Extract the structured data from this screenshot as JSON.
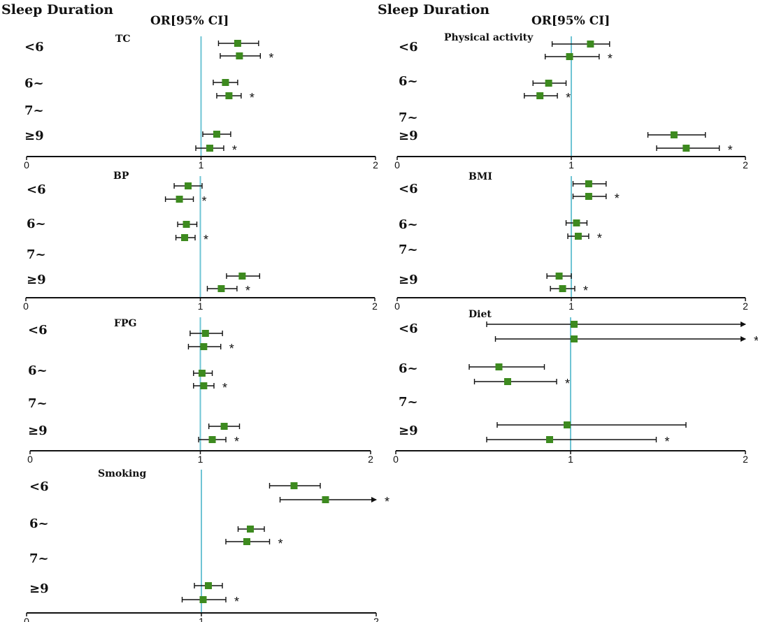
{
  "headers": {
    "left": "Sleep Duration",
    "right": "Sleep Duration",
    "or_left": "OR[95% CI]",
    "or_right": "OR[95% CI]"
  },
  "colors": {
    "marker": "#3d8a1f",
    "reference_line": "#6fc4d4",
    "axis": "#111111"
  },
  "chart_data": [
    {
      "type": "forest",
      "title": "TC",
      "categories": [
        "<6",
        "6~",
        "7~",
        "≥9"
      ],
      "xlim": [
        0,
        2
      ],
      "xticks": [
        "0",
        "1",
        "2"
      ],
      "reference": 1,
      "rows": [
        {
          "category": "<6",
          "or": 1.21,
          "lo": 1.1,
          "hi": 1.33,
          "star": false
        },
        {
          "category": "<6",
          "or": 1.22,
          "lo": 1.11,
          "hi": 1.34,
          "star": true
        },
        {
          "category": "6~",
          "or": 1.14,
          "lo": 1.07,
          "hi": 1.21,
          "star": false
        },
        {
          "category": "6~",
          "or": 1.16,
          "lo": 1.09,
          "hi": 1.23,
          "star": true
        },
        {
          "category": "≥9",
          "or": 1.09,
          "lo": 1.01,
          "hi": 1.17,
          "star": false
        },
        {
          "category": "≥9",
          "or": 1.05,
          "lo": 0.97,
          "hi": 1.13,
          "star": true
        }
      ]
    },
    {
      "type": "forest",
      "title": "Physical activity",
      "categories": [
        "<6",
        "6~",
        "7~",
        "≥9"
      ],
      "xlim": [
        0,
        2
      ],
      "xticks": [
        "0",
        "1",
        "2"
      ],
      "reference": 1,
      "rows": [
        {
          "category": "<6",
          "or": 1.11,
          "lo": 0.89,
          "hi": 1.22,
          "star": false
        },
        {
          "category": "<6",
          "or": 0.99,
          "lo": 0.85,
          "hi": 1.16,
          "star": true
        },
        {
          "category": "6~",
          "or": 0.87,
          "lo": 0.78,
          "hi": 0.97,
          "star": false
        },
        {
          "category": "6~",
          "or": 0.82,
          "lo": 0.73,
          "hi": 0.92,
          "star": true
        },
        {
          "category": "≥9",
          "or": 1.59,
          "lo": 1.44,
          "hi": 1.77,
          "star": false
        },
        {
          "category": "≥9",
          "or": 1.66,
          "lo": 1.49,
          "hi": 1.85,
          "star": true
        }
      ]
    },
    {
      "type": "forest",
      "title": "BP",
      "categories": [
        "<6",
        "6~",
        "7~",
        "≥9"
      ],
      "xlim": [
        0,
        2
      ],
      "xticks": [
        "0",
        "1",
        "2"
      ],
      "reference": 1,
      "rows": [
        {
          "category": "<6",
          "or": 0.93,
          "lo": 0.85,
          "hi": 1.01,
          "star": false
        },
        {
          "category": "<6",
          "or": 0.88,
          "lo": 0.8,
          "hi": 0.96,
          "star": true
        },
        {
          "category": "6~",
          "or": 0.92,
          "lo": 0.87,
          "hi": 0.98,
          "star": false
        },
        {
          "category": "6~",
          "or": 0.91,
          "lo": 0.86,
          "hi": 0.97,
          "star": true
        },
        {
          "category": "≥9",
          "or": 1.24,
          "lo": 1.15,
          "hi": 1.34,
          "star": false
        },
        {
          "category": "≥9",
          "or": 1.12,
          "lo": 1.04,
          "hi": 1.21,
          "star": true
        }
      ]
    },
    {
      "type": "forest",
      "title": "BMI",
      "categories": [
        "<6",
        "6~",
        "7~",
        "≥9"
      ],
      "xlim": [
        0,
        2
      ],
      "xticks": [
        "0",
        "1",
        "2"
      ],
      "reference": 1,
      "rows": [
        {
          "category": "<6",
          "or": 1.1,
          "lo": 1.01,
          "hi": 1.2,
          "star": false
        },
        {
          "category": "<6",
          "or": 1.1,
          "lo": 1.01,
          "hi": 1.2,
          "star": true
        },
        {
          "category": "6~",
          "or": 1.03,
          "lo": 0.97,
          "hi": 1.09,
          "star": false
        },
        {
          "category": "6~",
          "or": 1.04,
          "lo": 0.98,
          "hi": 1.1,
          "star": true
        },
        {
          "category": "≥9",
          "or": 0.93,
          "lo": 0.86,
          "hi": 1.0,
          "star": false
        },
        {
          "category": "≥9",
          "or": 0.95,
          "lo": 0.88,
          "hi": 1.02,
          "star": true
        }
      ]
    },
    {
      "type": "forest",
      "title": "FPG",
      "categories": [
        "<6",
        "6~",
        "7~",
        "≥9"
      ],
      "xlim": [
        0,
        2
      ],
      "xticks": [
        "0",
        "1",
        "2"
      ],
      "reference": 1,
      "rows": [
        {
          "category": "<6",
          "or": 1.03,
          "lo": 0.94,
          "hi": 1.13,
          "star": false
        },
        {
          "category": "<6",
          "or": 1.02,
          "lo": 0.93,
          "hi": 1.12,
          "star": true
        },
        {
          "category": "6~",
          "or": 1.01,
          "lo": 0.96,
          "hi": 1.07,
          "star": false
        },
        {
          "category": "6~",
          "or": 1.02,
          "lo": 0.96,
          "hi": 1.08,
          "star": true
        },
        {
          "category": "≥9",
          "or": 1.14,
          "lo": 1.05,
          "hi": 1.23,
          "star": false
        },
        {
          "category": "≥9",
          "or": 1.07,
          "lo": 0.99,
          "hi": 1.15,
          "star": true
        }
      ]
    },
    {
      "type": "forest",
      "title": "Diet",
      "categories": [
        "<6",
        "6~",
        "7~",
        "≥9"
      ],
      "xlim": [
        0,
        2
      ],
      "xticks": [
        "0",
        "1",
        "2"
      ],
      "reference": 1,
      "rows": [
        {
          "category": "<6",
          "or": 1.02,
          "lo": 0.52,
          "hi": 2.0,
          "arrow": true,
          "star": false
        },
        {
          "category": "<6",
          "or": 1.02,
          "lo": 0.57,
          "hi": 2.0,
          "arrow": true,
          "star": true
        },
        {
          "category": "6~",
          "or": 0.59,
          "lo": 0.42,
          "hi": 0.85,
          "star": false
        },
        {
          "category": "6~",
          "or": 0.64,
          "lo": 0.45,
          "hi": 0.92,
          "star": true
        },
        {
          "category": "≥9",
          "or": 0.98,
          "lo": 0.58,
          "hi": 1.66,
          "star": false
        },
        {
          "category": "≥9",
          "or": 0.88,
          "lo": 0.52,
          "hi": 1.49,
          "star": true
        }
      ]
    },
    {
      "type": "forest",
      "title": "Smoking",
      "categories": [
        "<6",
        "6~",
        "7~",
        "≥9"
      ],
      "xlim": [
        0,
        2
      ],
      "xticks": [
        "0",
        "1",
        "2"
      ],
      "reference": 1,
      "rows": [
        {
          "category": "<6",
          "or": 1.53,
          "lo": 1.39,
          "hi": 1.68,
          "star": false
        },
        {
          "category": "<6",
          "or": 1.71,
          "lo": 1.45,
          "hi": 2.0,
          "arrow": true,
          "star": true
        },
        {
          "category": "6~",
          "or": 1.28,
          "lo": 1.21,
          "hi": 1.36,
          "star": false
        },
        {
          "category": "6~",
          "or": 1.26,
          "lo": 1.14,
          "hi": 1.39,
          "star": true
        },
        {
          "category": "≥9",
          "or": 1.04,
          "lo": 0.96,
          "hi": 1.12,
          "star": false
        },
        {
          "category": "≥9",
          "or": 1.01,
          "lo": 0.89,
          "hi": 1.14,
          "star": true
        }
      ]
    }
  ]
}
